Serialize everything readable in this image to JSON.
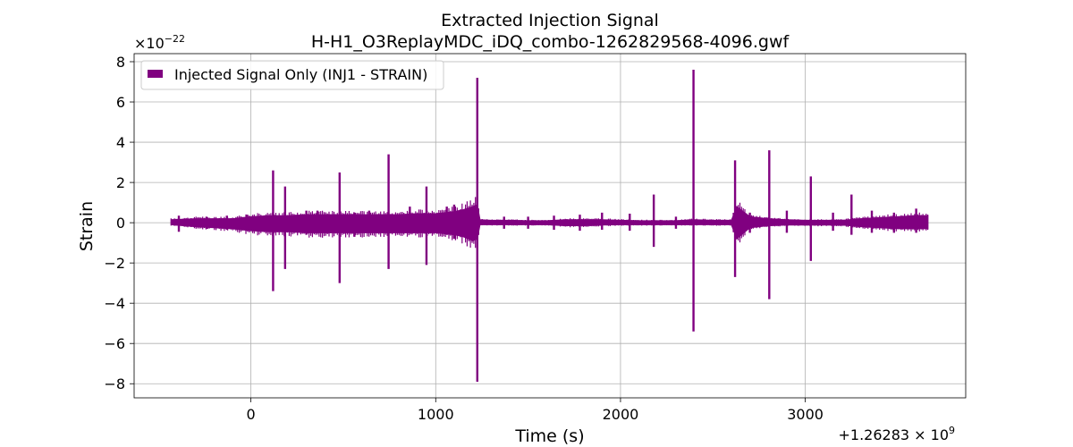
{
  "chart_data": {
    "type": "line",
    "title": "Extracted Injection Signal",
    "subtitle": "H-H1_O3ReplayMDC_iDQ_combo-1262829568-4096.gwf",
    "xlabel": "Time (s)",
    "ylabel": "Strain",
    "x_offset_label": "+1.26283",
    "x_offset_exp": "9",
    "y_multiplier_base": "×10",
    "y_multiplier_exp": "−22",
    "xlim": [
      -632,
      3868
    ],
    "ylim": [
      -8.7,
      8.4
    ],
    "xticks": [
      0,
      1000,
      2000,
      3000
    ],
    "xtick_labels": [
      "0",
      "1000",
      "2000",
      "3000"
    ],
    "yticks": [
      -8,
      -6,
      -4,
      -2,
      0,
      2,
      4,
      6,
      8
    ],
    "ytick_labels": [
      "−8",
      "−6",
      "−4",
      "−2",
      "0",
      "2",
      "4",
      "6",
      "8"
    ],
    "grid": true,
    "legend_position": "top-left",
    "series": [
      {
        "name": "Injected Signal Only (INJ1 - STRAIN)",
        "color": "#800080",
        "x_range": [
          -432,
          3664
        ],
        "envelope_x": [
          -432,
          -300,
          -200,
          -100,
          0,
          100,
          200,
          300,
          400,
          500,
          600,
          700,
          800,
          900,
          1000,
          1100,
          1150,
          1200,
          1225,
          1240,
          1300,
          1400,
          1500,
          1600,
          1700,
          1800,
          1900,
          2000,
          2100,
          2200,
          2300,
          2400,
          2500,
          2600,
          2630,
          2700,
          2800,
          2900,
          3000,
          3100,
          3200,
          3300,
          3400,
          3500,
          3600,
          3664
        ],
        "envelope_upper": [
          0.15,
          0.2,
          0.2,
          0.2,
          0.3,
          0.35,
          0.35,
          0.4,
          0.4,
          0.4,
          0.4,
          0.4,
          0.4,
          0.45,
          0.45,
          0.55,
          0.65,
          0.8,
          0.9,
          0.15,
          0.12,
          0.12,
          0.1,
          0.1,
          0.15,
          0.15,
          0.15,
          0.12,
          0.1,
          0.1,
          0.1,
          0.15,
          0.12,
          0.12,
          0.8,
          0.3,
          0.2,
          0.15,
          0.12,
          0.12,
          0.12,
          0.2,
          0.25,
          0.3,
          0.35,
          0.35
        ],
        "envelope_lower": [
          -0.1,
          -0.2,
          -0.25,
          -0.3,
          -0.4,
          -0.45,
          -0.45,
          -0.5,
          -0.5,
          -0.5,
          -0.5,
          -0.5,
          -0.5,
          -0.5,
          -0.5,
          -0.6,
          -0.7,
          -0.9,
          -0.8,
          -0.1,
          -0.1,
          -0.1,
          -0.1,
          -0.1,
          -0.15,
          -0.15,
          -0.12,
          -0.1,
          -0.1,
          -0.1,
          -0.1,
          -0.1,
          -0.1,
          -0.1,
          -0.8,
          -0.25,
          -0.15,
          -0.12,
          -0.12,
          -0.12,
          -0.12,
          -0.2,
          -0.25,
          -0.3,
          -0.3,
          -0.3
        ],
        "spikes": [
          {
            "t": -390,
            "max": 0.35,
            "min": -0.45
          },
          {
            "t": -240,
            "max": 0.3,
            "min": -0.3
          },
          {
            "t": -130,
            "max": 0.35,
            "min": -0.35
          },
          {
            "t": -20,
            "max": 0.4,
            "min": -0.4
          },
          {
            "t": 120,
            "max": 2.6,
            "min": -3.4
          },
          {
            "t": 185,
            "max": 1.8,
            "min": -2.3
          },
          {
            "t": 300,
            "max": 0.6,
            "min": -0.6
          },
          {
            "t": 360,
            "max": 0.6,
            "min": -0.5
          },
          {
            "t": 480,
            "max": 2.5,
            "min": -3.0
          },
          {
            "t": 560,
            "max": 0.5,
            "min": -0.7
          },
          {
            "t": 640,
            "max": 0.6,
            "min": -0.5
          },
          {
            "t": 745,
            "max": 3.4,
            "min": -2.3
          },
          {
            "t": 860,
            "max": 0.8,
            "min": -0.5
          },
          {
            "t": 950,
            "max": 1.8,
            "min": -2.1
          },
          {
            "t": 1060,
            "max": 0.8,
            "min": -0.6
          },
          {
            "t": 1100,
            "max": 0.9,
            "min": -0.8
          },
          {
            "t": 1225,
            "max": 7.2,
            "min": -7.9
          },
          {
            "t": 1370,
            "max": 0.3,
            "min": -0.3
          },
          {
            "t": 1500,
            "max": 0.3,
            "min": -0.3
          },
          {
            "t": 1640,
            "max": 0.35,
            "min": -0.35
          },
          {
            "t": 1780,
            "max": 0.4,
            "min": -0.4
          },
          {
            "t": 1900,
            "max": 0.5,
            "min": -0.35
          },
          {
            "t": 2050,
            "max": 0.45,
            "min": -0.4
          },
          {
            "t": 2180,
            "max": 1.4,
            "min": -1.2
          },
          {
            "t": 2300,
            "max": 0.3,
            "min": -0.3
          },
          {
            "t": 2395,
            "max": 7.6,
            "min": -5.4
          },
          {
            "t": 2620,
            "max": 3.1,
            "min": -2.7
          },
          {
            "t": 2700,
            "max": 0.5,
            "min": -0.5
          },
          {
            "t": 2805,
            "max": 3.6,
            "min": -3.8
          },
          {
            "t": 2900,
            "max": 0.6,
            "min": -0.5
          },
          {
            "t": 3030,
            "max": 2.3,
            "min": -1.9
          },
          {
            "t": 3150,
            "max": 0.5,
            "min": -0.4
          },
          {
            "t": 3250,
            "max": 1.4,
            "min": -0.6
          },
          {
            "t": 3360,
            "max": 0.6,
            "min": -0.5
          },
          {
            "t": 3480,
            "max": 0.5,
            "min": -0.5
          },
          {
            "t": 3600,
            "max": 0.7,
            "min": -0.5
          }
        ]
      }
    ]
  }
}
